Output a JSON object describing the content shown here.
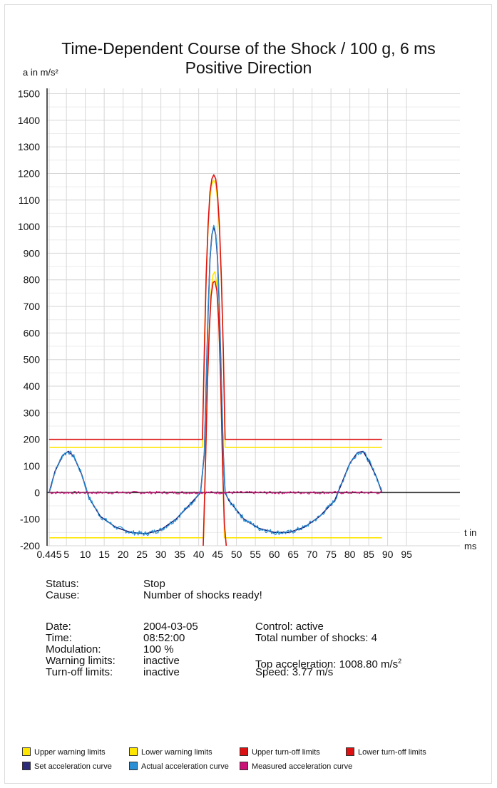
{
  "chart_data": {
    "type": "line",
    "title": "Time-Dependent Course of the Shock / 100 g, 6 ms",
    "subtitle": "Positive Direction",
    "ylabel": "a in m/s²",
    "xlabel_line1": "t in",
    "xlabel_line2": "ms",
    "xlim": [
      0.445,
      100
    ],
    "ylim": [
      -200,
      1520
    ],
    "x_ticks": [
      "0.445",
      "5",
      "10",
      "15",
      "20",
      "25",
      "30",
      "35",
      "40",
      "45",
      "50",
      "55",
      "60",
      "65",
      "70",
      "75",
      "80",
      "85",
      "90",
      "95"
    ],
    "y_ticks": [
      "1500",
      "1400",
      "1300",
      "1200",
      "1100",
      "1000",
      "900",
      "800",
      "700",
      "600",
      "500",
      "400",
      "300",
      "200",
      "100",
      "0",
      "-100",
      "-200"
    ],
    "grid": true,
    "series": [
      {
        "name": "Upper warning limits",
        "color": "#ffe600",
        "x": [
          0.445,
          41,
          41.5,
          42,
          42.5,
          43,
          43.5,
          44,
          44.5,
          45,
          45.5,
          46,
          46.5,
          47,
          47.5,
          88.5
        ],
        "y": [
          170,
          170,
          560,
          820,
          1000,
          1110,
          1160,
          1175,
          1160,
          1100,
          980,
          800,
          540,
          170,
          170,
          170
        ]
      },
      {
        "name": "Lower warning limits",
        "color": "#ffe600",
        "x": [
          0.445,
          41.3,
          41.8,
          42.3,
          42.8,
          43.3,
          43.8,
          44.3,
          44.8,
          45.3,
          45.8,
          46.3,
          46.8,
          88.5
        ],
        "y": [
          -170,
          -170,
          120,
          400,
          620,
          760,
          820,
          830,
          780,
          650,
          420,
          130,
          -170,
          -170
        ]
      },
      {
        "name": "Upper turn-off limits",
        "color": "#dd1111",
        "x": [
          0.445,
          41,
          41.5,
          42,
          42.5,
          43,
          43.5,
          44,
          44.5,
          45,
          45.5,
          46,
          46.5,
          47,
          47.5,
          88.5
        ],
        "y": [
          200,
          200,
          530,
          820,
          1010,
          1130,
          1180,
          1195,
          1180,
          1120,
          1000,
          810,
          540,
          200,
          200,
          200
        ]
      },
      {
        "name": "Lower turn-off limits",
        "color": "#dd1111",
        "x": [
          41.2,
          41.8,
          42.3,
          42.8,
          43.3,
          43.8,
          44.3,
          44.8,
          45.3,
          45.8,
          46.3,
          46.8,
          47.3
        ],
        "y": [
          -200,
          110,
          400,
          610,
          740,
          790,
          795,
          760,
          650,
          430,
          120,
          -120,
          -200
        ]
      },
      {
        "name": "Set acceleration curve",
        "color": "#1a1a6e",
        "x": [
          0.445,
          2,
          4,
          5.5,
          7,
          9,
          11,
          14,
          18,
          22,
          26,
          30,
          34,
          38,
          40.5,
          41.5,
          42,
          42.5,
          43,
          43.5,
          44,
          44.5,
          45,
          45.5,
          46,
          46.5,
          47,
          48,
          52,
          56,
          60,
          64,
          68,
          72,
          76,
          78,
          80,
          82,
          83.5,
          85,
          87,
          88.5
        ],
        "y": [
          0,
          80,
          140,
          155,
          135,
          70,
          -20,
          -90,
          -130,
          -150,
          -155,
          -140,
          -100,
          -40,
          0,
          150,
          420,
          680,
          880,
          970,
          1000,
          970,
          880,
          680,
          420,
          150,
          0,
          -30,
          -100,
          -135,
          -150,
          -150,
          -130,
          -90,
          -30,
          40,
          110,
          150,
          155,
          120,
          60,
          0
        ]
      },
      {
        "name": "Actual acceleration curve",
        "color": "#2a8fd4",
        "x": [
          0.445,
          2,
          4,
          5.5,
          7,
          9,
          11,
          14,
          18,
          22,
          26,
          30,
          34,
          38,
          40.5,
          41.5,
          42,
          42.5,
          43,
          43.5,
          44,
          44.5,
          45,
          45.5,
          46,
          46.5,
          47,
          48,
          52,
          56,
          60,
          64,
          68,
          72,
          76,
          78,
          80,
          82,
          83.5,
          85,
          87,
          88.5
        ],
        "y": [
          0,
          80,
          140,
          155,
          135,
          70,
          -20,
          -90,
          -130,
          -150,
          -155,
          -140,
          -100,
          -40,
          0,
          150,
          420,
          680,
          880,
          970,
          1000,
          970,
          880,
          680,
          420,
          150,
          0,
          -30,
          -100,
          -135,
          -150,
          -150,
          -130,
          -90,
          -30,
          40,
          110,
          150,
          155,
          120,
          60,
          0
        ]
      },
      {
        "name": "Measured acceleration curve",
        "color": "#cc1177",
        "x": [
          0.445,
          88.5
        ],
        "y": [
          0,
          0
        ]
      }
    ]
  },
  "info": {
    "status_label": "Status:",
    "status_value": "Stop",
    "cause_label": "Cause:",
    "cause_value": "Number of shocks ready!",
    "date_label": "Date:",
    "date_value": "2004-03-05",
    "time_label": "Time:",
    "time_value": "08:52:00",
    "modulation_label": "Modulation:",
    "modulation_value": "100 %",
    "warning_label": "Warning limits:",
    "warning_value": "inactive",
    "turnoff_label": "Turn-off limits:",
    "turnoff_value": "inactive",
    "control": "Control: active",
    "total_shocks": "Total number of shocks: 4",
    "top_acceleration_prefix": "Top acceleration: 1008.80 m/s",
    "top_acceleration_sup": "2",
    "speed": "Speed: 3.77 m/s"
  },
  "legend": [
    {
      "label": "Upper warning limits",
      "color": "#ffe600"
    },
    {
      "label": "Lower warning limits",
      "color": "#ffe600"
    },
    {
      "label": "Upper turn-off limits",
      "color": "#dd1111"
    },
    {
      "label": "Lower turn-off limits",
      "color": "#dd1111"
    },
    {
      "label": "Set acceleration curve",
      "color": "#2b2b7a"
    },
    {
      "label": "Actual acceleration curve",
      "color": "#2a8fd4"
    },
    {
      "label": "Measured acceleration curve",
      "color": "#cc1177"
    }
  ]
}
